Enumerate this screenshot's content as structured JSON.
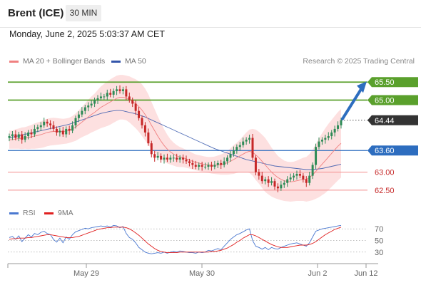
{
  "header": {
    "title": "Brent (ICE)",
    "timeframe": "30 MIN",
    "datetime": "Monday, June 2, 2025 5:03:37 AM CET"
  },
  "legend": {
    "ma20_label": "MA 20 + Bollinger Bands",
    "ma50_label": "MA 50",
    "rsi_label": "RSI",
    "rsi_ma_label": "9MA"
  },
  "credit": "Research © 2025 Trading Central",
  "colors": {
    "up_candle": "#2e8b57",
    "down_candle": "#c62828",
    "ma20": "#f08080",
    "ma50": "#3355aa",
    "band_fill": "#fde0e0",
    "resistance": "#5aa02c",
    "pivot": "#2d6dbf",
    "support": "#f28b8b",
    "last_price_bg": "#333333",
    "rsi": "#4a78d0",
    "rsi_ma": "#e02020"
  },
  "chart_data": [
    {
      "type": "candlestick",
      "title": "Brent (ICE)",
      "interval": "30 MIN",
      "x_ticks": [
        "May 29",
        "May 30",
        "Jun 2",
        "Jun 12"
      ],
      "price_range": [
        62.2,
        65.9
      ],
      "close_series": [
        64.0,
        64.05,
        63.95,
        64.05,
        63.9,
        64.0,
        64.1,
        64.05,
        64.2,
        64.25,
        64.3,
        64.4,
        64.35,
        64.3,
        64.2,
        64.1,
        64.15,
        64.05,
        64.2,
        64.15,
        64.3,
        64.5,
        64.6,
        64.7,
        64.8,
        64.85,
        64.9,
        65.0,
        65.05,
        65.1,
        65.1,
        65.2,
        65.15,
        65.25,
        65.3,
        65.25,
        65.3,
        65.1,
        65.0,
        64.9,
        64.7,
        64.5,
        64.3,
        64.1,
        63.8,
        63.5,
        63.4,
        63.45,
        63.35,
        63.4,
        63.35,
        63.4,
        63.4,
        63.35,
        63.4,
        63.35,
        63.3,
        63.25,
        63.2,
        63.15,
        63.2,
        63.15,
        63.15,
        63.2,
        63.15,
        63.2,
        63.25,
        63.2,
        63.3,
        63.4,
        63.5,
        63.6,
        63.7,
        63.75,
        63.85,
        63.9,
        63.95,
        63.4,
        63.0,
        62.9,
        62.75,
        62.8,
        62.7,
        62.75,
        62.6,
        62.55,
        62.65,
        62.7,
        62.8,
        62.85,
        62.9,
        62.95,
        62.9,
        62.8,
        62.7,
        62.9,
        63.2,
        63.7,
        63.85,
        63.9,
        63.95,
        64.0,
        64.1,
        64.2,
        64.3,
        64.44
      ],
      "ma20_series": [
        63.9,
        63.9,
        63.92,
        63.93,
        63.94,
        63.95,
        63.96,
        63.98,
        64.0,
        64.02,
        64.04,
        64.07,
        64.1,
        64.12,
        64.13,
        64.13,
        64.13,
        64.13,
        64.14,
        64.16,
        64.2,
        64.25,
        64.32,
        64.39,
        64.46,
        64.53,
        64.6,
        64.66,
        64.73,
        64.8,
        64.85,
        64.9,
        64.95,
        65.0,
        65.05,
        65.08,
        65.08,
        65.06,
        65.02,
        64.96,
        64.9,
        64.82,
        64.72,
        64.6,
        64.46,
        64.3,
        64.15,
        64.0,
        63.86,
        63.74,
        63.64,
        63.56,
        63.5,
        63.45,
        63.42,
        63.4,
        63.37,
        63.34,
        63.3,
        63.27,
        63.25,
        63.23,
        63.21,
        63.2,
        63.19,
        63.19,
        63.2,
        63.21,
        63.23,
        63.26,
        63.3,
        63.35,
        63.4,
        63.45,
        63.5,
        63.55,
        63.58,
        63.55,
        63.48,
        63.4,
        63.3,
        63.2,
        63.1,
        63.0,
        62.92,
        62.85,
        62.8,
        62.76,
        62.74,
        62.73,
        62.74,
        62.76,
        62.78,
        62.8,
        62.8,
        62.85,
        62.92,
        63.02,
        63.12,
        63.22,
        63.32,
        63.42,
        63.52,
        63.62,
        63.72,
        63.8
      ],
      "ma50_series": [
        63.95,
        63.97,
        63.99,
        64.01,
        64.03,
        64.05,
        64.07,
        64.09,
        64.11,
        64.13,
        64.15,
        64.17,
        64.19,
        64.21,
        64.23,
        64.25,
        64.27,
        64.29,
        64.31,
        64.33,
        64.36,
        64.39,
        64.42,
        64.45,
        64.48,
        64.51,
        64.54,
        64.57,
        64.6,
        64.63,
        64.65,
        64.67,
        64.69,
        64.7,
        64.71,
        64.71,
        64.7,
        64.68,
        64.66,
        64.64,
        64.62,
        64.59,
        64.56,
        64.53,
        64.49,
        64.45,
        64.41,
        64.37,
        64.33,
        64.29,
        64.25,
        64.21,
        64.17,
        64.13,
        64.09,
        64.05,
        64.01,
        63.97,
        63.93,
        63.89,
        63.85,
        63.81,
        63.77,
        63.73,
        63.69,
        63.65,
        63.62,
        63.59,
        63.56,
        63.53,
        63.5,
        63.47,
        63.44,
        63.41,
        63.38,
        63.35,
        63.33,
        63.31,
        63.29,
        63.27,
        63.25,
        63.23,
        63.21,
        63.19,
        63.17,
        63.16,
        63.15,
        63.14,
        63.13,
        63.12,
        63.11,
        63.1,
        63.09,
        63.08,
        63.07,
        63.07,
        63.07,
        63.08,
        63.09,
        63.1,
        63.12,
        63.14,
        63.16,
        63.18,
        63.2,
        63.22
      ],
      "band_width_series": [
        0.25,
        0.25,
        0.27,
        0.28,
        0.3,
        0.3,
        0.32,
        0.33,
        0.35,
        0.36,
        0.37,
        0.38,
        0.38,
        0.38,
        0.38,
        0.37,
        0.36,
        0.35,
        0.35,
        0.35,
        0.36,
        0.38,
        0.4,
        0.42,
        0.45,
        0.48,
        0.5,
        0.52,
        0.55,
        0.58,
        0.6,
        0.62,
        0.63,
        0.63,
        0.63,
        0.62,
        0.62,
        0.62,
        0.64,
        0.66,
        0.68,
        0.7,
        0.72,
        0.72,
        0.7,
        0.65,
        0.6,
        0.55,
        0.5,
        0.45,
        0.4,
        0.35,
        0.32,
        0.3,
        0.28,
        0.26,
        0.25,
        0.24,
        0.23,
        0.22,
        0.22,
        0.22,
        0.22,
        0.22,
        0.23,
        0.24,
        0.26,
        0.28,
        0.3,
        0.33,
        0.36,
        0.4,
        0.42,
        0.45,
        0.5,
        0.55,
        0.6,
        0.65,
        0.7,
        0.72,
        0.74,
        0.75,
        0.72,
        0.68,
        0.64,
        0.6,
        0.58,
        0.56,
        0.55,
        0.55,
        0.55,
        0.56,
        0.58,
        0.6,
        0.62,
        0.65,
        0.7,
        0.76,
        0.82,
        0.86,
        0.9,
        0.92,
        0.93,
        0.94,
        0.95,
        0.95
      ],
      "levels": [
        {
          "value": 65.5,
          "label": "65.50",
          "kind": "resistance"
        },
        {
          "value": 65.0,
          "label": "65.00",
          "kind": "resistance"
        },
        {
          "value": 64.44,
          "label": "64.44",
          "kind": "last"
        },
        {
          "value": 63.6,
          "label": "63.60",
          "kind": "pivot"
        },
        {
          "value": 63.0,
          "label": "63.00",
          "kind": "support"
        },
        {
          "value": 62.5,
          "label": "62.50",
          "kind": "support"
        }
      ],
      "forecast_arrow": {
        "from": 64.44,
        "to": 65.5
      },
      "legend_entries": [
        "MA 20 + Bollinger Bands",
        "MA 50"
      ]
    },
    {
      "type": "line",
      "title": "RSI",
      "ylim": [
        15,
        85
      ],
      "y_ticks": [
        70,
        50,
        30
      ],
      "series": [
        {
          "name": "RSI",
          "values": [
            55,
            57,
            52,
            58,
            48,
            54,
            60,
            56,
            62,
            60,
            64,
            66,
            62,
            60,
            52,
            47,
            54,
            46,
            56,
            52,
            60,
            65,
            67,
            69,
            71,
            70,
            72,
            73,
            74,
            75,
            74,
            75,
            73,
            76,
            75,
            72,
            74,
            62,
            55,
            52,
            46,
            38,
            34,
            30,
            28,
            27,
            28,
            29,
            28,
            30,
            28,
            30,
            31,
            30,
            32,
            31,
            30,
            29,
            29,
            28,
            30,
            29,
            30,
            33,
            32,
            34,
            36,
            34,
            40,
            46,
            52,
            56,
            60,
            62,
            65,
            68,
            70,
            50,
            40,
            38,
            35,
            38,
            34,
            38,
            36,
            35,
            38,
            40,
            42,
            44,
            45,
            46,
            44,
            42,
            40,
            46,
            56,
            66,
            68,
            70,
            71,
            72,
            73,
            74,
            75,
            76
          ]
        },
        {
          "name": "9MA",
          "values": [
            52,
            53,
            53,
            54,
            54,
            54,
            55,
            55,
            56,
            57,
            58,
            59,
            60,
            60,
            59,
            58,
            57,
            56,
            55,
            55,
            55,
            56,
            57,
            59,
            61,
            63,
            65,
            67,
            69,
            70,
            71,
            72,
            72,
            73,
            73,
            73,
            73,
            72,
            70,
            67,
            63,
            59,
            54,
            49,
            44,
            40,
            36,
            33,
            31,
            30,
            29,
            29,
            29,
            29,
            30,
            30,
            30,
            30,
            30,
            30,
            30,
            30,
            30,
            30,
            31,
            31,
            32,
            33,
            35,
            37,
            40,
            43,
            47,
            50,
            54,
            57,
            60,
            60,
            58,
            55,
            52,
            49,
            46,
            43,
            41,
            39,
            38,
            38,
            38,
            39,
            40,
            41,
            42,
            42,
            42,
            43,
            45,
            48,
            52,
            56,
            60,
            63,
            66,
            69,
            71,
            73
          ]
        }
      ],
      "legend_entries": [
        "RSI",
        "9MA"
      ]
    }
  ]
}
